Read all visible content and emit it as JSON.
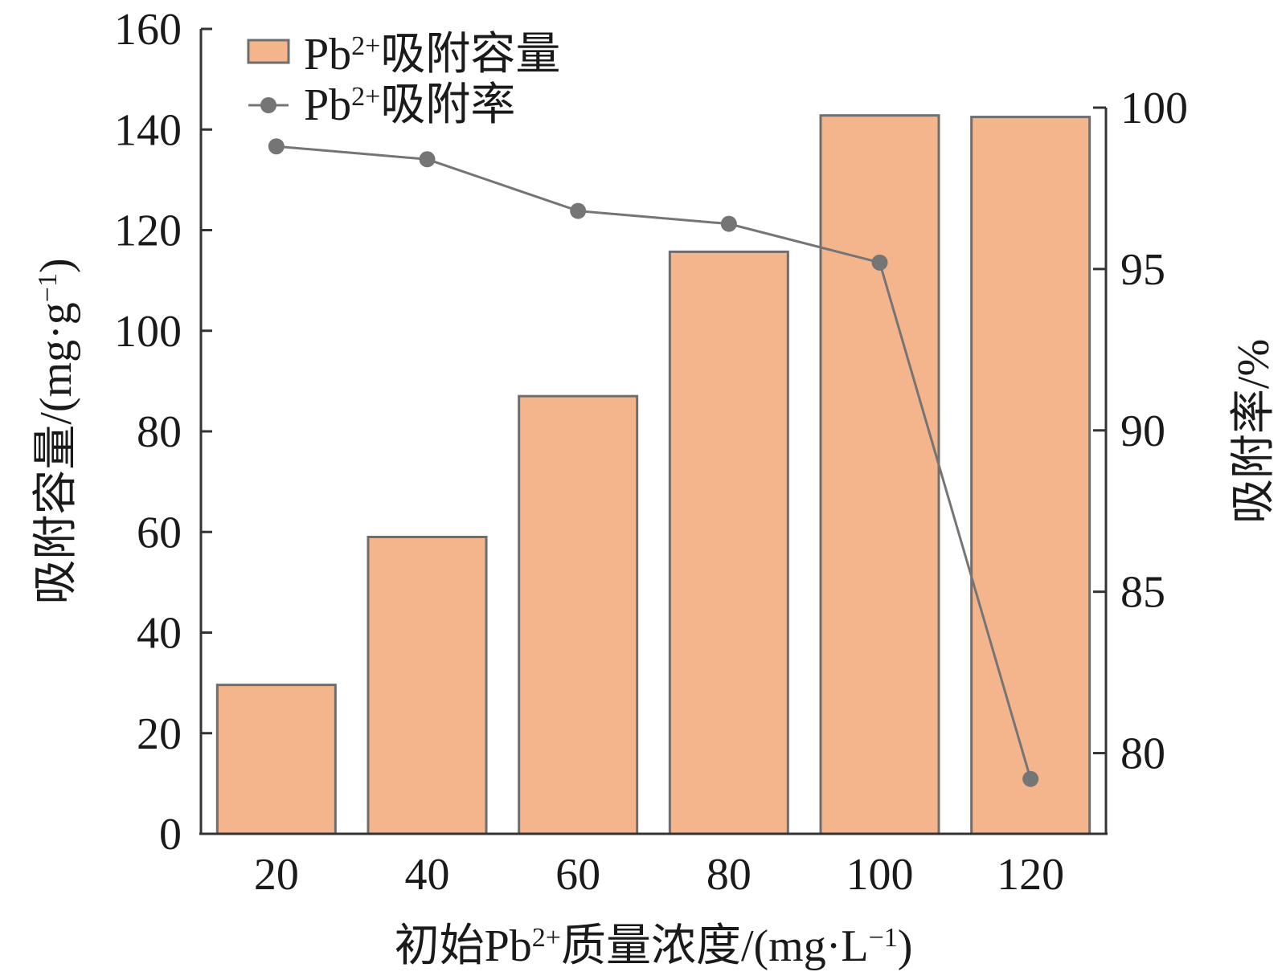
{
  "chart_data": {
    "type": "bar",
    "title": "",
    "categories": [
      "20",
      "40",
      "60",
      "80",
      "100",
      "120"
    ],
    "xlabel": {
      "pre": "初始Pb",
      "sup": "2+",
      "post": "质量浓度/(mg·L",
      "sup2": "−1",
      "end": ")"
    },
    "ylabel_left": {
      "pre": "吸附容量/(mg·g",
      "sup": "−1",
      "post": ")"
    },
    "ylabel_right": "吸附率/%",
    "ylim_left": [
      0,
      160
    ],
    "yticks_left": [
      "0",
      "20",
      "40",
      "60",
      "80",
      "100",
      "120",
      "140",
      "160"
    ],
    "ylim_right": [
      77.5,
      100
    ],
    "yticks_right": [
      "80",
      "85",
      "90",
      "95",
      "100"
    ],
    "series": [
      {
        "name": {
          "pre": "Pb",
          "sup": "2+",
          "post": "吸附容量"
        },
        "type": "bar",
        "axis": "left",
        "color": "#f4b58c",
        "values": [
          29.6,
          59.0,
          87.0,
          115.7,
          142.8,
          142.5
        ]
      },
      {
        "name": {
          "pre": "Pb",
          "sup": "2+",
          "post": "吸附率"
        },
        "type": "line",
        "axis": "right",
        "color": "#757575",
        "values": [
          98.8,
          98.4,
          96.8,
          96.4,
          95.2,
          79.2
        ]
      }
    ],
    "legend_position": "top-left",
    "grid": false
  }
}
